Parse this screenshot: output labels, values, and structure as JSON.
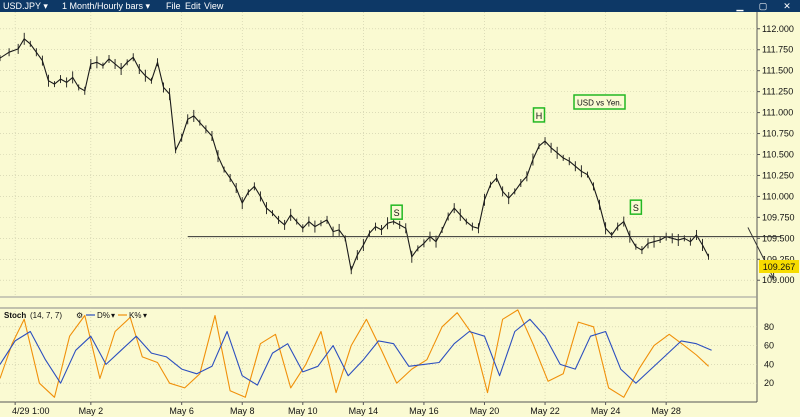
{
  "window": {
    "symbol": "USD.JPY",
    "period": "1 Month/Hourly bars",
    "menu": [
      "File",
      "Edit",
      "View"
    ]
  },
  "colors": {
    "background": "#fafad2",
    "titlebar": "#0d3866",
    "price": "#1a1a1a",
    "neckline": "#333333",
    "label_border": "#22b822",
    "d_line": "#2c4fbf",
    "k_line": "#f0900a",
    "last_price_badge": "#f7dc00"
  },
  "chart_data": [
    {
      "type": "line",
      "title": "",
      "annotation": "USD vs Yen.",
      "last_price": "109.267",
      "yticks": [
        "112.000",
        "111.750",
        "111.500",
        "111.250",
        "111.000",
        "110.750",
        "110.500",
        "110.250",
        "110.000",
        "109.750",
        "109.500",
        "109.250",
        "109.000"
      ],
      "ylim": [
        108.8,
        112.2
      ],
      "xticks": [
        "4/29 1:00",
        "May 2",
        "May 6",
        "May 8",
        "May 10",
        "May 14",
        "May 16",
        "May 20",
        "May 22",
        "May 24",
        "May 28"
      ],
      "xtick_positions": [
        0.5,
        3,
        6,
        8,
        10,
        12,
        14,
        16,
        18,
        20,
        22
      ],
      "xlim": [
        0,
        25
      ],
      "series": [
        {
          "values": [
            [
              0,
              111.65
            ],
            [
              0.3,
              111.72
            ],
            [
              0.6,
              111.76
            ],
            [
              0.8,
              111.88
            ],
            [
              1.0,
              111.82
            ],
            [
              1.2,
              111.72
            ],
            [
              1.4,
              111.62
            ],
            [
              1.6,
              111.38
            ],
            [
              1.8,
              111.34
            ],
            [
              2.0,
              111.4
            ],
            [
              2.2,
              111.36
            ],
            [
              2.4,
              111.42
            ],
            [
              2.6,
              111.3
            ],
            [
              2.8,
              111.26
            ],
            [
              3.0,
              111.58
            ],
            [
              3.2,
              111.6
            ],
            [
              3.4,
              111.56
            ],
            [
              3.6,
              111.64
            ],
            [
              3.8,
              111.58
            ],
            [
              4.0,
              111.52
            ],
            [
              4.2,
              111.6
            ],
            [
              4.4,
              111.66
            ],
            [
              4.6,
              111.52
            ],
            [
              4.8,
              111.44
            ],
            [
              5.0,
              111.38
            ],
            [
              5.2,
              111.6
            ],
            [
              5.4,
              111.3
            ],
            [
              5.6,
              111.22
            ],
            [
              5.8,
              110.55
            ],
            [
              6.0,
              110.7
            ],
            [
              6.2,
              110.92
            ],
            [
              6.4,
              110.96
            ],
            [
              6.6,
              110.88
            ],
            [
              6.8,
              110.8
            ],
            [
              7.0,
              110.72
            ],
            [
              7.2,
              110.48
            ],
            [
              7.4,
              110.32
            ],
            [
              7.6,
              110.22
            ],
            [
              7.8,
              110.1
            ],
            [
              8.0,
              109.92
            ],
            [
              8.2,
              110.05
            ],
            [
              8.4,
              110.12
            ],
            [
              8.6,
              110.0
            ],
            [
              8.8,
              109.86
            ],
            [
              9.0,
              109.8
            ],
            [
              9.2,
              109.72
            ],
            [
              9.4,
              109.66
            ],
            [
              9.6,
              109.78
            ],
            [
              9.8,
              109.7
            ],
            [
              10.0,
              109.62
            ],
            [
              10.2,
              109.7
            ],
            [
              10.4,
              109.64
            ],
            [
              10.6,
              109.68
            ],
            [
              10.8,
              109.72
            ],
            [
              11.0,
              109.58
            ],
            [
              11.2,
              109.6
            ],
            [
              11.4,
              109.5
            ],
            [
              11.6,
              109.12
            ],
            [
              11.8,
              109.3
            ],
            [
              12.0,
              109.42
            ],
            [
              12.2,
              109.56
            ],
            [
              12.4,
              109.64
            ],
            [
              12.6,
              109.6
            ],
            [
              12.8,
              109.68
            ],
            [
              13.0,
              109.7
            ],
            [
              13.2,
              109.66
            ],
            [
              13.4,
              109.62
            ],
            [
              13.6,
              109.28
            ],
            [
              13.8,
              109.38
            ],
            [
              14.0,
              109.44
            ],
            [
              14.2,
              109.52
            ],
            [
              14.4,
              109.46
            ],
            [
              14.6,
              109.6
            ],
            [
              14.8,
              109.76
            ],
            [
              15.0,
              109.86
            ],
            [
              15.2,
              109.78
            ],
            [
              15.4,
              109.7
            ],
            [
              15.6,
              109.64
            ],
            [
              15.8,
              109.62
            ],
            [
              16.0,
              109.96
            ],
            [
              16.2,
              110.14
            ],
            [
              16.4,
              110.22
            ],
            [
              16.6,
              110.06
            ],
            [
              16.8,
              109.98
            ],
            [
              17.0,
              110.06
            ],
            [
              17.2,
              110.16
            ],
            [
              17.4,
              110.24
            ],
            [
              17.6,
              110.44
            ],
            [
              17.8,
              110.6
            ],
            [
              18.0,
              110.66
            ],
            [
              18.2,
              110.58
            ],
            [
              18.4,
              110.52
            ],
            [
              18.6,
              110.46
            ],
            [
              18.8,
              110.42
            ],
            [
              19.0,
              110.36
            ],
            [
              19.2,
              110.3
            ],
            [
              19.4,
              110.26
            ],
            [
              19.6,
              110.12
            ],
            [
              19.8,
              109.9
            ],
            [
              20.0,
              109.62
            ],
            [
              20.2,
              109.54
            ],
            [
              20.4,
              109.64
            ],
            [
              20.6,
              109.7
            ],
            [
              20.8,
              109.52
            ],
            [
              21.0,
              109.4
            ],
            [
              21.2,
              109.36
            ],
            [
              21.4,
              109.44
            ],
            [
              21.6,
              109.46
            ],
            [
              21.8,
              109.48
            ],
            [
              22.0,
              109.52
            ],
            [
              22.2,
              109.5
            ],
            [
              22.4,
              109.48
            ],
            [
              22.6,
              109.5
            ],
            [
              22.8,
              109.46
            ],
            [
              23.0,
              109.54
            ],
            [
              23.2,
              109.42
            ],
            [
              23.4,
              109.28
            ]
          ]
        }
      ],
      "neckline": {
        "y": 109.52,
        "x": [
          6.2,
          25.8
        ]
      },
      "projection": [
        [
          24.7,
          109.63
        ],
        [
          25.55,
          109.02
        ]
      ],
      "labels": [
        {
          "text": "S",
          "x": 13.1,
          "y": 109.8
        },
        {
          "text": "H",
          "x": 17.8,
          "y": 110.96
        },
        {
          "text": "S",
          "x": 21.0,
          "y": 109.86
        }
      ]
    },
    {
      "type": "line",
      "title": "",
      "indicator": "Stoch",
      "params": "(14, 7, 7)",
      "legend": [
        "D%",
        "K%"
      ],
      "yticks": [
        "80",
        "60",
        "40",
        "20"
      ],
      "ylim": [
        0,
        100
      ],
      "xlim": [
        0,
        25
      ],
      "series": [
        {
          "name": "D%",
          "values": [
            [
              0,
              40
            ],
            [
              0.5,
              65
            ],
            [
              1.0,
              75
            ],
            [
              1.5,
              45
            ],
            [
              2.0,
              20
            ],
            [
              2.5,
              55
            ],
            [
              3.0,
              70
            ],
            [
              3.5,
              40
            ],
            [
              4.0,
              55
            ],
            [
              4.5,
              70
            ],
            [
              5.0,
              52
            ],
            [
              5.5,
              48
            ],
            [
              6.0,
              35
            ],
            [
              6.5,
              30
            ],
            [
              7.0,
              38
            ],
            [
              7.5,
              75
            ],
            [
              8.0,
              28
            ],
            [
              8.5,
              18
            ],
            [
              9.0,
              52
            ],
            [
              9.5,
              62
            ],
            [
              10.0,
              32
            ],
            [
              10.5,
              38
            ],
            [
              11.0,
              60
            ],
            [
              11.5,
              28
            ],
            [
              12.0,
              45
            ],
            [
              12.5,
              65
            ],
            [
              13.0,
              62
            ],
            [
              13.5,
              38
            ],
            [
              14.0,
              40
            ],
            [
              14.5,
              42
            ],
            [
              15.0,
              62
            ],
            [
              15.5,
              75
            ],
            [
              16.0,
              70
            ],
            [
              16.5,
              28
            ],
            [
              17.0,
              75
            ],
            [
              17.5,
              88
            ],
            [
              18.0,
              70
            ],
            [
              18.5,
              40
            ],
            [
              19.0,
              35
            ],
            [
              19.5,
              70
            ],
            [
              20.0,
              75
            ],
            [
              20.5,
              35
            ],
            [
              21.0,
              20
            ],
            [
              21.5,
              35
            ],
            [
              22.0,
              50
            ],
            [
              22.5,
              65
            ],
            [
              23.0,
              62
            ],
            [
              23.5,
              55
            ]
          ]
        },
        {
          "name": "K%",
          "values": [
            [
              0,
              25
            ],
            [
              0.4,
              62
            ],
            [
              0.8,
              88
            ],
            [
              1.3,
              20
            ],
            [
              1.8,
              5
            ],
            [
              2.3,
              70
            ],
            [
              2.8,
              92
            ],
            [
              3.3,
              25
            ],
            [
              3.8,
              75
            ],
            [
              4.3,
              90
            ],
            [
              4.7,
              48
            ],
            [
              5.2,
              42
            ],
            [
              5.6,
              20
            ],
            [
              6.1,
              15
            ],
            [
              6.6,
              30
            ],
            [
              7.1,
              92
            ],
            [
              7.6,
              12
            ],
            [
              8.1,
              5
            ],
            [
              8.6,
              62
            ],
            [
              9.1,
              72
            ],
            [
              9.6,
              15
            ],
            [
              10.1,
              40
            ],
            [
              10.6,
              75
            ],
            [
              11.1,
              10
            ],
            [
              11.6,
              60
            ],
            [
              12.1,
              88
            ],
            [
              12.6,
              55
            ],
            [
              13.1,
              20
            ],
            [
              13.6,
              35
            ],
            [
              14.1,
              45
            ],
            [
              14.6,
              80
            ],
            [
              15.1,
              95
            ],
            [
              15.6,
              72
            ],
            [
              16.1,
              10
            ],
            [
              16.6,
              88
            ],
            [
              17.1,
              98
            ],
            [
              17.6,
              62
            ],
            [
              18.1,
              22
            ],
            [
              18.6,
              30
            ],
            [
              19.1,
              85
            ],
            [
              19.6,
              80
            ],
            [
              20.1,
              15
            ],
            [
              20.6,
              5
            ],
            [
              21.1,
              35
            ],
            [
              21.6,
              60
            ],
            [
              22.1,
              72
            ],
            [
              22.6,
              60
            ],
            [
              23.0,
              50
            ],
            [
              23.4,
              38
            ]
          ]
        }
      ]
    }
  ]
}
